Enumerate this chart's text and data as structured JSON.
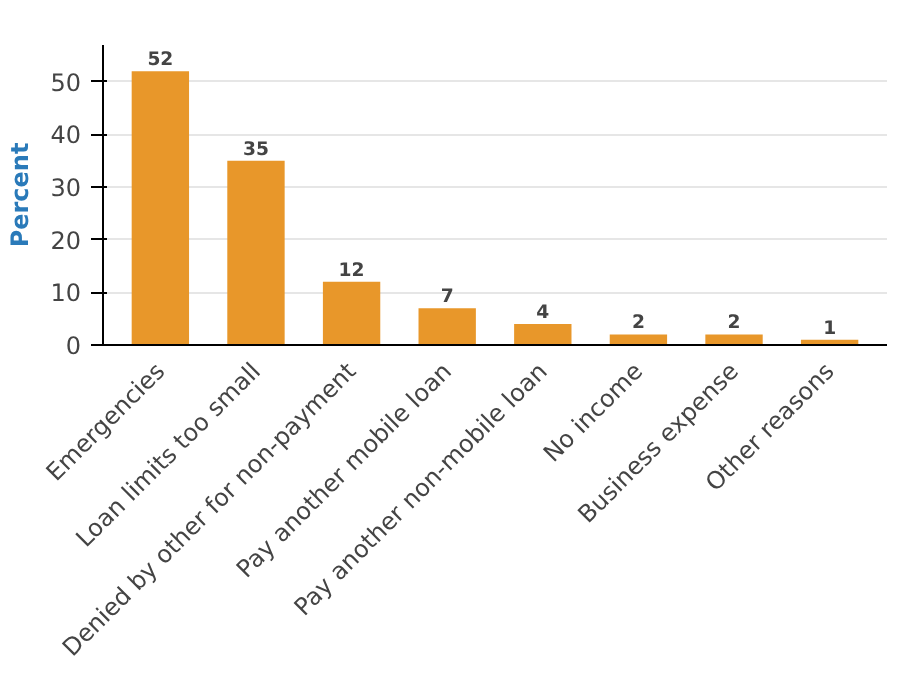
{
  "chart_data": {
    "type": "bar",
    "ylabel": "Percent",
    "categories": [
      "Emergencies",
      "Loan limits too small",
      "Denied by other for non-payment",
      "Pay another mobile loan",
      "Pay another non-mobile loan",
      "No income",
      "Business expense",
      "Other reasons"
    ],
    "values": [
      52,
      35,
      12,
      7,
      4,
      2,
      2,
      1
    ],
    "color": "#e8972a",
    "ylim": [
      0,
      57
    ],
    "yticks": [
      0,
      10,
      20,
      30,
      40,
      50
    ],
    "grid": "y",
    "data_labels": true
  }
}
